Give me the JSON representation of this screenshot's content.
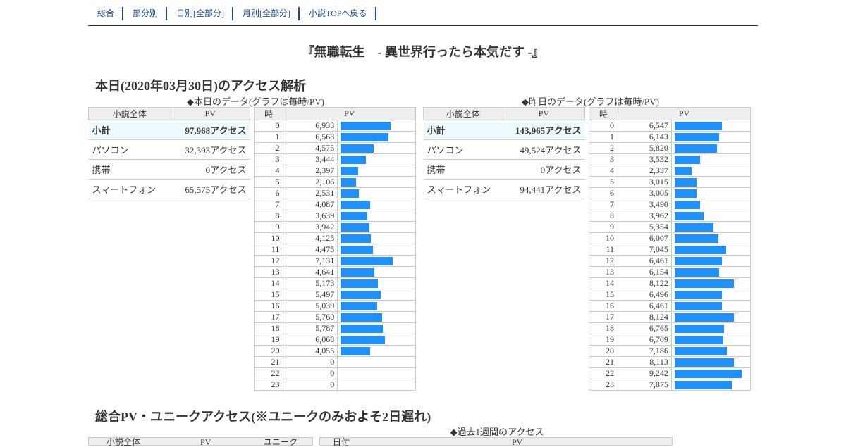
{
  "nav": [
    "総合",
    "部分別",
    "日別[全部分]",
    "月別[全部分]",
    "小説TOPへ戻る"
  ],
  "title": "『無職転生　- 異世界行ったら本気だす -』",
  "today": {
    "heading": "本日(2020年03月30日)のアクセス解析",
    "caption": "◆本日のデータ(グラフは毎時/PV)",
    "summary_head": [
      "小説全体",
      "PV"
    ],
    "summary": [
      {
        "label": "小計",
        "value": "97,968アクセス"
      },
      {
        "label": "パソコン",
        "value": "32,393アクセス"
      },
      {
        "label": "携帯",
        "value": "0アクセス"
      },
      {
        "label": "スマートフォン",
        "value": "65,575アクセス"
      }
    ],
    "hour_head": [
      "時",
      "PV"
    ],
    "hourly": [
      6933,
      6563,
      4575,
      3444,
      2397,
      2106,
      2531,
      4087,
      3639,
      3942,
      4125,
      4475,
      7131,
      4641,
      5173,
      5497,
      5039,
      5760,
      5787,
      6068,
      4055,
      0,
      0,
      0
    ]
  },
  "yesterday": {
    "caption": "◆昨日のデータ(グラフは毎時/PV)",
    "summary_head": [
      "小説全体",
      "PV"
    ],
    "summary": [
      {
        "label": "小計",
        "value": "143,965アクセス"
      },
      {
        "label": "パソコン",
        "value": "49,524アクセス"
      },
      {
        "label": "携帯",
        "value": "0アクセス"
      },
      {
        "label": "スマートフォン",
        "value": "94,441アクセス"
      }
    ],
    "hour_head": [
      "時",
      "PV"
    ],
    "hourly": [
      6547,
      6143,
      5820,
      3532,
      2337,
      3015,
      3005,
      3490,
      3962,
      5354,
      6007,
      7045,
      6461,
      6154,
      8122,
      6496,
      6461,
      8124,
      6765,
      6709,
      7186,
      8113,
      9242,
      7875
    ]
  },
  "total": {
    "heading": "総合PV・ユニークアクセス(※ユニークのみおよそ2日遅れ)",
    "caption": "◆過去1週間のアクセス",
    "left_head": [
      "小説全体",
      "PV",
      "ユニーク"
    ],
    "right_head": [
      "日付",
      "PV"
    ]
  },
  "bar_color": "#1e90ff",
  "bar_max": 9700
}
